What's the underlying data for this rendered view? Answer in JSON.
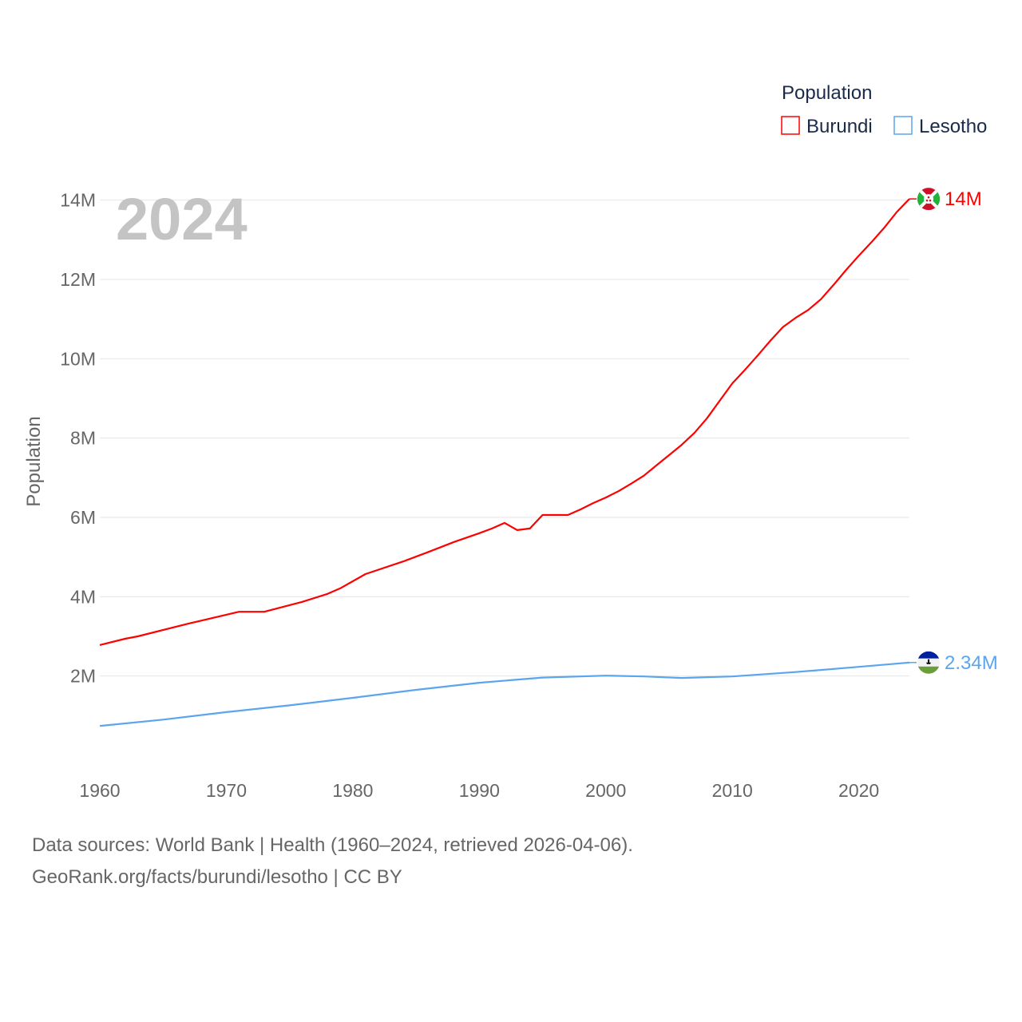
{
  "chart_data": {
    "type": "line",
    "year_label": "2024",
    "ylabel": "Population",
    "legend_title": "Population",
    "legend_position": "top-right",
    "xlim": [
      1960,
      2024
    ],
    "ylim": [
      0,
      14000000
    ],
    "xticks": [
      "1960",
      "1970",
      "1980",
      "1990",
      "2000",
      "2010",
      "2020"
    ],
    "yticks": [
      {
        "v": 2000000,
        "label": "2M"
      },
      {
        "v": 4000000,
        "label": "4M"
      },
      {
        "v": 6000000,
        "label": "6M"
      },
      {
        "v": 8000000,
        "label": "8M"
      },
      {
        "v": 10000000,
        "label": "10M"
      },
      {
        "v": 12000000,
        "label": "12M"
      },
      {
        "v": 14000000,
        "label": "14M"
      }
    ],
    "grid": true,
    "series": [
      {
        "name": "Burundi",
        "color": "#ff0000",
        "end_label": "14M",
        "points": [
          [
            1960,
            2.78
          ],
          [
            1962,
            2.94
          ],
          [
            1963,
            3.0
          ],
          [
            1967,
            3.32
          ],
          [
            1971,
            3.62
          ],
          [
            1973,
            3.62
          ],
          [
            1976,
            3.87
          ],
          [
            1978,
            4.07
          ],
          [
            1979,
            4.21
          ],
          [
            1981,
            4.57
          ],
          [
            1984,
            4.89
          ],
          [
            1986,
            5.13
          ],
          [
            1988,
            5.38
          ],
          [
            1990,
            5.6
          ],
          [
            1991,
            5.72
          ],
          [
            1992,
            5.86
          ],
          [
            1993,
            5.68
          ],
          [
            1994,
            5.72
          ],
          [
            1995,
            6.06
          ],
          [
            1997,
            6.06
          ],
          [
            1998,
            6.2
          ],
          [
            1999,
            6.36
          ],
          [
            2000,
            6.5
          ],
          [
            2001,
            6.66
          ],
          [
            2002,
            6.85
          ],
          [
            2003,
            7.05
          ],
          [
            2004,
            7.31
          ],
          [
            2005,
            7.57
          ],
          [
            2006,
            7.83
          ],
          [
            2007,
            8.13
          ],
          [
            2008,
            8.5
          ],
          [
            2009,
            8.94
          ],
          [
            2010,
            9.38
          ],
          [
            2011,
            9.72
          ],
          [
            2012,
            10.08
          ],
          [
            2013,
            10.45
          ],
          [
            2014,
            10.8
          ],
          [
            2015,
            11.03
          ],
          [
            2016,
            11.23
          ],
          [
            2017,
            11.5
          ],
          [
            2018,
            11.86
          ],
          [
            2019,
            12.24
          ],
          [
            2020,
            12.6
          ],
          [
            2021,
            12.94
          ],
          [
            2022,
            13.3
          ],
          [
            2023,
            13.7
          ],
          [
            2024,
            14.03
          ]
        ]
      },
      {
        "name": "Lesotho",
        "color": "#5aa5ee",
        "end_label": "2.34M",
        "points": [
          [
            1960,
            0.74
          ],
          [
            1965,
            0.9
          ],
          [
            1970,
            1.09
          ],
          [
            1975,
            1.26
          ],
          [
            1980,
            1.45
          ],
          [
            1985,
            1.65
          ],
          [
            1990,
            1.83
          ],
          [
            1995,
            1.96
          ],
          [
            2000,
            2.01
          ],
          [
            2003,
            1.99
          ],
          [
            2006,
            1.95
          ],
          [
            2010,
            1.99
          ],
          [
            2015,
            2.1
          ],
          [
            2020,
            2.23
          ],
          [
            2024,
            2.34
          ]
        ]
      }
    ]
  },
  "footer": {
    "line1": "Data sources: World Bank | Health (1960–2024, retrieved 2026-04-06).",
    "line2": "GeoRank.org/facts/burundi/lesotho | CC BY"
  }
}
